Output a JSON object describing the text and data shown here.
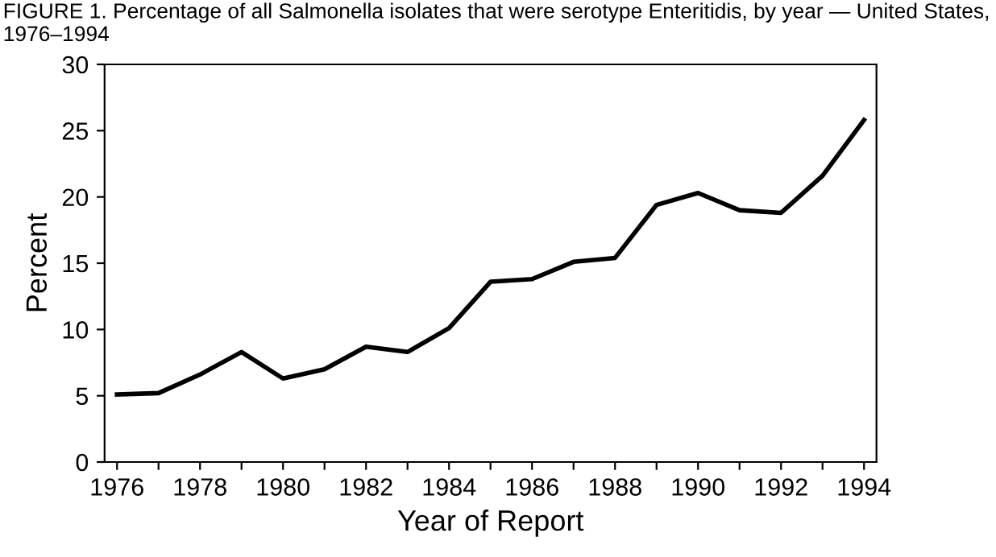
{
  "chart_data": {
    "type": "line",
    "title": "FIGURE 1. Percentage of all Salmonella isolates that were serotype Enteritidis, by year — United States, 1976–1994",
    "xlabel": "Year of Report",
    "ylabel": "Percent",
    "x": [
      1976,
      1977,
      1978,
      1979,
      1980,
      1981,
      1982,
      1983,
      1984,
      1985,
      1986,
      1987,
      1988,
      1989,
      1990,
      1991,
      1992,
      1993,
      1994
    ],
    "series": [
      {
        "color": "#000000",
        "values": [
          5.1,
          5.2,
          6.6,
          8.3,
          6.3,
          7.0,
          8.7,
          8.3,
          10.1,
          13.6,
          13.8,
          15.1,
          15.4,
          19.4,
          20.3,
          19.0,
          18.8,
          21.6,
          25.8
        ]
      }
    ],
    "xlim": [
      1975.7,
      1994.3
    ],
    "xticks": [
      1976,
      {
        "value": 1977,
        "label": null
      },
      1978,
      {
        "value": 1979,
        "label": null
      },
      1980,
      {
        "value": 1981,
        "label": null
      },
      1982,
      {
        "value": 1983,
        "label": null
      },
      1984,
      {
        "value": 1985,
        "label": null
      },
      1986,
      {
        "value": 1987,
        "label": null
      },
      1988,
      {
        "value": 1989,
        "label": null
      },
      1990,
      {
        "value": 1991,
        "label": null
      },
      1992,
      {
        "value": 1993,
        "label": null
      },
      1994
    ],
    "ylim": [
      0,
      30
    ],
    "yticks": [
      0,
      5,
      10,
      15,
      20,
      25,
      30
    ],
    "grid": false,
    "marker": "none",
    "line_style": "solid",
    "legend": false
  }
}
